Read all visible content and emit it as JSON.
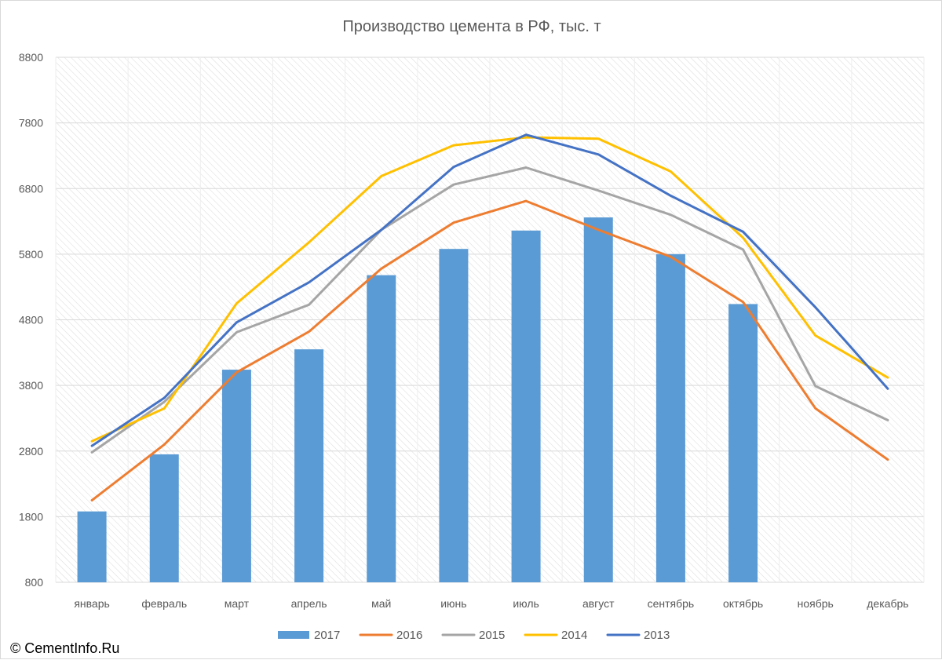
{
  "credit": "© CementInfo.Ru",
  "chart_data": {
    "type": "bar",
    "title": "Производство цемента в РФ, тыс. т",
    "categories": [
      "январь",
      "февраль",
      "март",
      "апрель",
      "май",
      "июнь",
      "июль",
      "август",
      "сентябрь",
      "октябрь",
      "ноябрь",
      "декабрь"
    ],
    "ylim": [
      800,
      8800
    ],
    "yticks": [
      800,
      1800,
      2800,
      3800,
      4800,
      5800,
      6800,
      7800,
      8800
    ],
    "grid": true,
    "legend_position": "bottom",
    "series": [
      {
        "name": "2017",
        "type": "bar",
        "color": "#5b9bd5",
        "values": [
          1880,
          2750,
          4040,
          4350,
          5480,
          5880,
          6160,
          6360,
          5800,
          5040,
          null,
          null
        ]
      },
      {
        "name": "2016",
        "type": "line",
        "color": "#ed7d31",
        "values": [
          2050,
          2900,
          4000,
          4620,
          5580,
          6280,
          6610,
          6170,
          5760,
          5070,
          3450,
          2670
        ]
      },
      {
        "name": "2015",
        "type": "line",
        "color": "#a5a5a5",
        "values": [
          2780,
          3550,
          4610,
          5030,
          6170,
          6860,
          7120,
          6770,
          6400,
          5870,
          3790,
          3270
        ]
      },
      {
        "name": "2014",
        "type": "line",
        "color": "#ffc000",
        "values": [
          2950,
          3450,
          5050,
          5980,
          6990,
          7460,
          7580,
          7560,
          7060,
          6050,
          4560,
          3920
        ]
      },
      {
        "name": "2013",
        "type": "line",
        "color": "#4472c4",
        "values": [
          2880,
          3610,
          4760,
          5370,
          6170,
          7130,
          7620,
          7320,
          6690,
          6140,
          4990,
          3750
        ]
      }
    ]
  }
}
